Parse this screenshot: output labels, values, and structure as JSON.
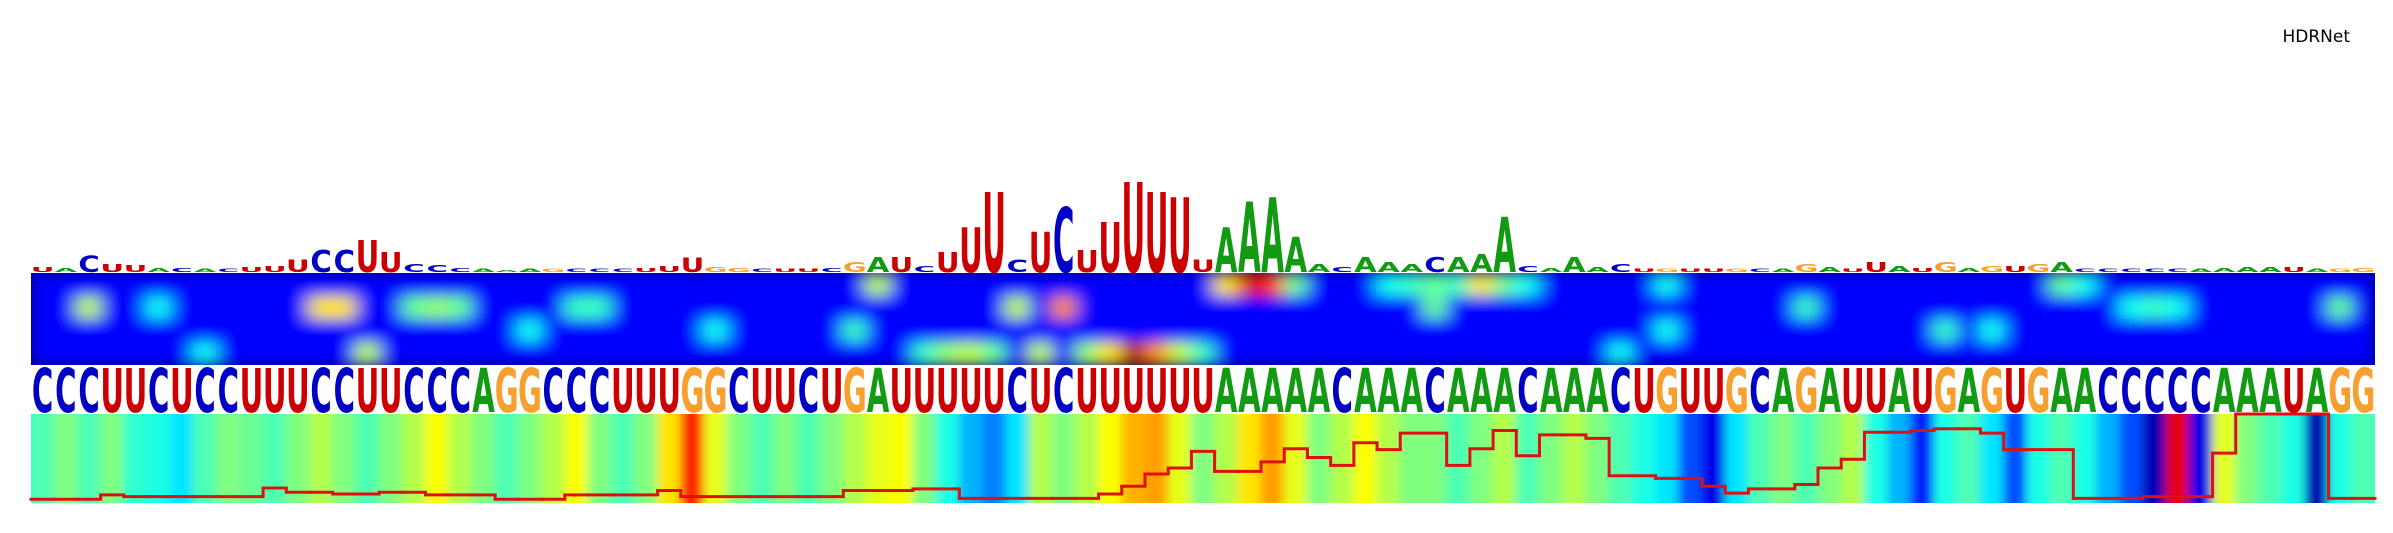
{
  "title": "HDRNet",
  "letter_colors": {
    "A": "#139a13",
    "C": "#0000c4",
    "G": "#f7a030",
    "U": "#cc0000"
  },
  "sequence": [
    "C",
    "C",
    "C",
    "U",
    "U",
    "C",
    "U",
    "C",
    "C",
    "U",
    "U",
    "U",
    "C",
    "C",
    "U",
    "U",
    "C",
    "C",
    "C",
    "A",
    "G",
    "G",
    "C",
    "C",
    "C",
    "U",
    "U",
    "U",
    "G",
    "G",
    "C",
    "U",
    "U",
    "C",
    "U",
    "G",
    "A",
    "U",
    "U",
    "U",
    "U",
    "U",
    "C",
    "U",
    "C",
    "U",
    "U",
    "U",
    "U",
    "U",
    "U",
    "A",
    "A",
    "A",
    "A",
    "A",
    "C",
    "A",
    "A",
    "A",
    "C",
    "A",
    "A",
    "A",
    "C",
    "A",
    "A",
    "A",
    "C",
    "U",
    "G",
    "U",
    "U",
    "G",
    "C",
    "A",
    "G",
    "A",
    "U",
    "U",
    "A",
    "U",
    "G",
    "A",
    "G",
    "U",
    "G",
    "A",
    "A",
    "C",
    "C",
    "C",
    "C",
    "C",
    "A",
    "A",
    "A",
    "U",
    "A",
    "G",
    "G"
  ],
  "logo": {
    "letters": [
      "U",
      "A",
      "C",
      "U",
      "U",
      "A",
      "C",
      "A",
      "C",
      "U",
      "U",
      "U",
      "C",
      "C",
      "U",
      "U",
      "C",
      "C",
      "C",
      "A",
      "A",
      "A",
      "G",
      "C",
      "C",
      "C",
      "U",
      "U",
      "U",
      "G",
      "G",
      "C",
      "U",
      "U",
      "C",
      "G",
      "A",
      "U",
      "C",
      "U",
      "U",
      "U",
      "C",
      "U",
      "C",
      "U",
      "U",
      "U",
      "U",
      "U",
      "U",
      "A",
      "A",
      "A",
      "A",
      "A",
      "C",
      "A",
      "A",
      "A",
      "C",
      "A",
      "A",
      "A",
      "C",
      "A",
      "A",
      "A",
      "C",
      "U",
      "G",
      "U",
      "U",
      "G",
      "C",
      "A",
      "G",
      "A",
      "U",
      "U",
      "A",
      "U",
      "G",
      "A",
      "G",
      "U",
      "G",
      "A",
      "C",
      "C",
      "C",
      "C",
      "C",
      "A",
      "A",
      "A",
      "A",
      "U",
      "A",
      "G",
      "G"
    ],
    "heights": [
      5,
      4,
      16,
      8,
      7,
      4,
      4,
      3,
      3,
      5,
      6,
      12,
      22,
      22,
      32,
      20,
      8,
      7,
      4,
      3,
      2,
      3,
      3,
      3,
      3,
      3,
      4,
      6,
      14,
      5,
      4,
      3,
      3,
      3,
      4,
      10,
      15,
      15,
      6,
      20,
      45,
      80,
      12,
      40,
      65,
      22,
      50,
      90,
      80,
      75,
      12,
      45,
      70,
      75,
      35,
      8,
      5,
      15,
      10,
      8,
      15,
      15,
      18,
      55,
      6,
      4,
      15,
      5,
      8,
      3,
      3,
      3,
      3,
      3,
      3,
      3,
      8,
      5,
      3,
      10,
      6,
      4,
      10,
      4,
      6,
      6,
      8,
      10,
      3,
      3,
      3,
      3,
      3,
      3,
      4,
      5,
      5,
      5,
      3,
      3,
      4
    ]
  },
  "heatmap": [
    [
      0,
      0,
      0,
      0,
      0,
      0,
      0,
      0,
      0,
      0,
      0,
      0,
      0,
      0,
      0,
      0,
      0,
      0,
      0,
      0,
      0,
      0,
      0,
      0,
      0,
      0,
      0,
      0,
      0,
      0,
      0,
      0,
      0,
      0,
      0,
      0,
      0.5,
      0,
      0,
      0,
      0,
      0,
      0,
      0,
      0,
      0,
      0,
      0,
      0,
      0,
      0,
      0.6,
      0.9,
      0.8,
      0.4,
      0,
      0,
      0,
      0.3,
      0.35,
      0.4,
      0.35,
      0.6,
      0.4,
      0.3,
      0,
      0,
      0,
      0,
      0,
      0.3,
      0,
      0,
      0,
      0,
      0,
      0,
      0,
      0,
      0,
      0,
      0,
      0,
      0,
      0,
      0,
      0,
      0.4,
      0.3,
      0,
      0,
      0,
      0,
      0,
      0,
      0,
      0,
      0,
      0,
      0,
      0
    ],
    [
      0,
      0,
      0.5,
      0,
      0,
      0.3,
      0,
      0,
      0,
      0,
      0,
      0,
      0.6,
      0.6,
      0,
      0,
      0.4,
      0.45,
      0.4,
      0,
      0,
      0,
      0,
      0.35,
      0.35,
      0,
      0,
      0,
      0,
      0,
      0,
      0,
      0,
      0,
      0,
      0,
      0,
      0,
      0,
      0,
      0,
      0,
      0.5,
      0,
      0.7,
      0,
      0,
      0,
      0,
      0,
      0,
      0,
      0,
      0,
      0,
      0,
      0,
      0,
      0,
      0,
      0.4,
      0,
      0,
      0,
      0,
      0,
      0,
      0,
      0,
      0,
      0,
      0,
      0,
      0,
      0,
      0,
      0.35,
      0,
      0,
      0,
      0,
      0,
      0,
      0,
      0,
      0,
      0,
      0,
      0,
      0,
      0.3,
      0.35,
      0.3,
      0,
      0,
      0,
      0,
      0,
      0,
      0.4,
      0
    ],
    [
      0,
      0,
      0,
      0,
      0,
      0,
      0,
      0,
      0,
      0,
      0,
      0,
      0,
      0,
      0,
      0,
      0,
      0,
      0,
      0,
      0,
      0.3,
      0,
      0,
      0,
      0,
      0,
      0,
      0,
      0.3,
      0,
      0,
      0,
      0,
      0,
      0.35,
      0,
      0,
      0,
      0,
      0,
      0,
      0,
      0,
      0,
      0,
      0,
      0,
      0,
      0,
      0,
      0,
      0,
      0,
      0,
      0,
      0,
      0,
      0,
      0,
      0,
      0,
      0,
      0,
      0,
      0,
      0,
      0,
      0,
      0,
      0.3,
      0,
      0,
      0,
      0,
      0,
      0,
      0,
      0,
      0,
      0,
      0,
      0.35,
      0,
      0.3,
      0,
      0,
      0,
      0,
      0,
      0,
      0,
      0,
      0,
      0,
      0,
      0,
      0,
      0,
      0,
      0
    ],
    [
      0,
      0,
      0,
      0,
      0,
      0,
      0,
      0.3,
      0,
      0,
      0,
      0,
      0,
      0,
      0.5,
      0,
      0,
      0,
      0,
      0,
      0,
      0,
      0,
      0,
      0,
      0,
      0,
      0,
      0,
      0,
      0,
      0,
      0,
      0,
      0,
      0,
      0,
      0,
      0.35,
      0.45,
      0.5,
      0.4,
      0,
      0.5,
      0,
      0.45,
      0.6,
      0.95,
      0.7,
      0.5,
      0.35,
      0,
      0,
      0,
      0,
      0,
      0,
      0,
      0,
      0,
      0,
      0,
      0,
      0,
      0,
      0,
      0,
      0,
      0.3,
      0,
      0,
      0,
      0,
      0,
      0,
      0,
      0,
      0,
      0,
      0,
      0,
      0,
      0,
      0,
      0,
      0,
      0,
      0,
      0,
      0,
      0,
      0,
      0,
      0,
      0,
      0,
      0,
      0,
      0,
      0,
      0
    ]
  ],
  "track": [
    0.45,
    0.5,
    0.45,
    0.5,
    0.42,
    0.4,
    0.35,
    0.45,
    0.5,
    0.48,
    0.45,
    0.5,
    0.55,
    0.5,
    0.45,
    0.5,
    0.55,
    0.62,
    0.55,
    0.5,
    0.45,
    0.5,
    0.55,
    0.62,
    0.5,
    0.45,
    0.5,
    0.65,
    0.85,
    0.6,
    0.5,
    0.45,
    0.5,
    0.45,
    0.5,
    0.55,
    0.6,
    0.62,
    0.5,
    0.4,
    0.3,
    0.25,
    0.35,
    0.55,
    0.5,
    0.55,
    0.62,
    0.7,
    0.72,
    0.6,
    0.5,
    0.55,
    0.65,
    0.72,
    0.6,
    0.5,
    0.55,
    0.62,
    0.55,
    0.5,
    0.5,
    0.45,
    0.5,
    0.55,
    0.45,
    0.5,
    0.55,
    0.5,
    0.45,
    0.4,
    0.35,
    0.2,
    0.1,
    0.35,
    0.45,
    0.5,
    0.45,
    0.5,
    0.55,
    0.4,
    0.3,
    0.15,
    0.4,
    0.45,
    0.35,
    0.2,
    0.4,
    0.45,
    0.4,
    0.3,
    0.2,
    0.05,
    0.9,
    0.1,
    0.6,
    0.5,
    0.45,
    0.4,
    0.05,
    0.4,
    0.45
  ],
  "line": [
    0.02,
    0.02,
    0.02,
    0.07,
    0.05,
    0.05,
    0.05,
    0.05,
    0.05,
    0.05,
    0.15,
    0.1,
    0.1,
    0.08,
    0.08,
    0.1,
    0.1,
    0.07,
    0.07,
    0.07,
    0.02,
    0.02,
    0.02,
    0.07,
    0.07,
    0.07,
    0.07,
    0.12,
    0.05,
    0.05,
    0.05,
    0.05,
    0.05,
    0.05,
    0.05,
    0.12,
    0.12,
    0.12,
    0.14,
    0.14,
    0.03,
    0.03,
    0.03,
    0.03,
    0.03,
    0.03,
    0.08,
    0.17,
    0.31,
    0.38,
    0.57,
    0.34,
    0.34,
    0.45,
    0.6,
    0.5,
    0.41,
    0.67,
    0.59,
    0.78,
    0.78,
    0.41,
    0.6,
    0.81,
    0.52,
    0.76,
    0.76,
    0.72,
    0.29,
    0.29,
    0.26,
    0.26,
    0.17,
    0.09,
    0.14,
    0.14,
    0.19,
    0.38,
    0.48,
    0.79,
    0.79,
    0.81,
    0.83,
    0.83,
    0.78,
    0.59,
    0.59,
    0.59,
    0.03,
    0.03,
    0.03,
    0.05,
    0.05,
    0.05,
    0.55,
    1.0,
    1.0,
    1.0,
    1.0,
    0.03,
    0.03
  ]
}
